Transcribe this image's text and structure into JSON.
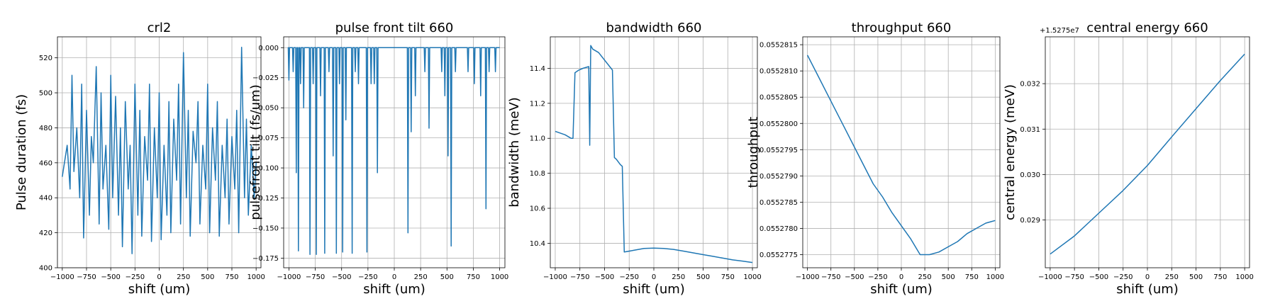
{
  "chart_data": [
    {
      "type": "line",
      "title": "crl2",
      "xlabel": "shift (um)",
      "ylabel": "Pulse duration (fs)",
      "xlim": [
        -1050,
        1050
      ],
      "ylim": [
        400,
        532
      ],
      "xticks": [
        -1000,
        -750,
        -500,
        -250,
        0,
        250,
        500,
        750,
        1000
      ],
      "xtick_labels": [
        "−1000",
        "−750",
        "−500",
        "−250",
        "0",
        "250",
        "500",
        "750",
        "1000"
      ],
      "yticks": [
        400,
        420,
        440,
        460,
        480,
        500,
        520
      ],
      "ytick_labels": [
        "400",
        "420",
        "440",
        "460",
        "480",
        "500",
        "520"
      ],
      "grid": true,
      "series": [
        {
          "x": [
            -1000,
            -950,
            -920,
            -900,
            -880,
            -850,
            -820,
            -800,
            -780,
            -750,
            -720,
            -700,
            -680,
            -650,
            -620,
            -600,
            -580,
            -550,
            -520,
            -500,
            -480,
            -450,
            -420,
            -400,
            -380,
            -350,
            -320,
            -300,
            -280,
            -250,
            -220,
            -200,
            -180,
            -150,
            -120,
            -100,
            -80,
            -50,
            -20,
            0,
            20,
            50,
            80,
            100,
            120,
            150,
            180,
            200,
            220,
            250,
            280,
            300,
            320,
            350,
            380,
            400,
            420,
            450,
            480,
            500,
            520,
            550,
            580,
            600,
            620,
            650,
            680,
            700,
            720,
            750,
            780,
            800,
            820,
            850,
            880,
            900,
            920,
            950,
            980,
            1000
          ],
          "y": [
            452,
            470,
            445,
            510,
            455,
            480,
            440,
            505,
            417,
            490,
            430,
            475,
            460,
            515,
            425,
            500,
            445,
            470,
            422,
            510,
            440,
            498,
            430,
            480,
            412,
            495,
            445,
            470,
            408,
            505,
            430,
            490,
            418,
            475,
            450,
            505,
            415,
            480,
            440,
            500,
            416,
            470,
            430,
            495,
            420,
            485,
            450,
            505,
            425,
            523,
            440,
            490,
            418,
            478,
            460,
            495,
            425,
            470,
            445,
            505,
            420,
            480,
            450,
            495,
            418,
            470,
            440,
            485,
            425,
            475,
            445,
            490,
            420,
            526,
            440,
            485,
            430,
            470,
            440,
            460
          ]
        }
      ]
    },
    {
      "type": "line",
      "title": "pulse front tilt 660",
      "xlabel": "shift (um)",
      "ylabel": "pulsefront tilt (fs/um)",
      "xlim": [
        -1050,
        1050
      ],
      "ylim": [
        -0.183,
        0.009
      ],
      "xticks": [
        -1000,
        -750,
        -500,
        -250,
        0,
        250,
        500,
        750,
        1000
      ],
      "xtick_labels": [
        "−1000",
        "−750",
        "−500",
        "−250",
        "0",
        "250",
        "500",
        "750",
        "1000"
      ],
      "yticks": [
        0,
        -0.025,
        -0.05,
        -0.075,
        -0.1,
        -0.125,
        -0.15,
        -0.175
      ],
      "ytick_labels": [
        "0.000",
        "−0.025",
        "−0.050",
        "−0.075",
        "−0.100",
        "−0.125",
        "−0.150",
        "−0.175"
      ],
      "grid": true,
      "spikes": [
        [
          -1000,
          -0.027
        ],
        [
          -960,
          -0.02
        ],
        [
          -930,
          -0.104
        ],
        [
          -910,
          -0.169
        ],
        [
          -890,
          -0.03
        ],
        [
          -860,
          -0.05
        ],
        [
          -800,
          -0.172
        ],
        [
          -770,
          -0.03
        ],
        [
          -740,
          -0.172
        ],
        [
          -700,
          -0.04
        ],
        [
          -660,
          -0.171
        ],
        [
          -620,
          -0.02
        ],
        [
          -580,
          -0.09
        ],
        [
          -550,
          -0.171
        ],
        [
          -520,
          -0.03
        ],
        [
          -490,
          -0.17
        ],
        [
          -460,
          -0.06
        ],
        [
          -400,
          -0.171
        ],
        [
          -370,
          -0.02
        ],
        [
          -340,
          -0.03
        ],
        [
          -260,
          -0.17
        ],
        [
          -220,
          -0.03
        ],
        [
          -190,
          -0.03
        ],
        [
          -160,
          -0.104
        ],
        [
          130,
          -0.154
        ],
        [
          160,
          -0.07
        ],
        [
          200,
          -0.04
        ],
        [
          290,
          -0.02
        ],
        [
          330,
          -0.067
        ],
        [
          450,
          -0.02
        ],
        [
          480,
          -0.04
        ],
        [
          510,
          -0.09
        ],
        [
          540,
          -0.165
        ],
        [
          580,
          -0.02
        ],
        [
          700,
          -0.02
        ],
        [
          760,
          -0.03
        ],
        [
          820,
          -0.04
        ],
        [
          870,
          -0.134
        ],
        [
          900,
          -0.02
        ],
        [
          960,
          -0.02
        ]
      ]
    },
    {
      "type": "line",
      "title": "bandwidth 660",
      "xlabel": "shift (um)",
      "ylabel": "bandwidth (meV)",
      "xlim": [
        -1050,
        1050
      ],
      "ylim": [
        10.26,
        11.58
      ],
      "xticks": [
        -1000,
        -750,
        -500,
        -250,
        0,
        250,
        500,
        750,
        1000
      ],
      "xtick_labels": [
        "−1000",
        "−750",
        "−500",
        "−250",
        "0",
        "250",
        "500",
        "750",
        "1000"
      ],
      "yticks": [
        10.4,
        10.6,
        10.8,
        11.0,
        11.2,
        11.4
      ],
      "ytick_labels": [
        "10.4",
        "10.6",
        "10.8",
        "11.0",
        "11.2",
        "11.4"
      ],
      "grid": true,
      "series": [
        {
          "x": [
            -1000,
            -900,
            -840,
            -820,
            -800,
            -760,
            -720,
            -660,
            -650,
            -640,
            -630,
            -620,
            -560,
            -420,
            -400,
            -380,
            -340,
            -320,
            -300,
            -200,
            -100,
            0,
            100,
            200,
            300,
            400,
            500,
            600,
            700,
            800,
            900,
            1000
          ],
          "y": [
            11.04,
            11.02,
            11.0,
            11.0,
            11.375,
            11.39,
            11.4,
            11.41,
            10.96,
            11.53,
            11.52,
            11.51,
            11.49,
            11.39,
            10.89,
            10.88,
            10.85,
            10.84,
            10.35,
            10.36,
            10.37,
            10.372,
            10.37,
            10.365,
            10.355,
            10.345,
            10.335,
            10.325,
            10.315,
            10.305,
            10.298,
            10.29
          ]
        }
      ]
    },
    {
      "type": "line",
      "title": "throughput 660",
      "xlabel": "shift (um)",
      "ylabel": "throughput",
      "xlim": [
        -1050,
        1050
      ],
      "ylim": [
        0.05527725,
        0.05528165
      ],
      "xticks": [
        -1000,
        -750,
        -500,
        -250,
        0,
        250,
        500,
        750,
        1000
      ],
      "xtick_labels": [
        "−1000",
        "−750",
        "−500",
        "−250",
        "0",
        "250",
        "500",
        "750",
        "1000"
      ],
      "yticks": [
        0.0552775,
        0.055278,
        0.0552785,
        0.055279,
        0.0552795,
        0.05528,
        0.0552805,
        0.055281,
        0.0552815
      ],
      "ytick_labels": [
        "0.0552775",
        "0.0552780",
        "0.0552785",
        "0.0552790",
        "0.0552795",
        "0.0552800",
        "0.0552805",
        "0.0552810",
        "0.0552815"
      ],
      "grid": true,
      "series": [
        {
          "x": [
            -1000,
            -900,
            -800,
            -700,
            -600,
            -500,
            -400,
            -300,
            -200,
            -100,
            0,
            100,
            200,
            300,
            400,
            500,
            600,
            700,
            800,
            900,
            1000
          ],
          "y": [
            0.0552813,
            0.05528095,
            0.0552806,
            0.05528025,
            0.0552799,
            0.05527955,
            0.0552792,
            0.05527885,
            0.0552786,
            0.0552783,
            0.05527805,
            0.0552778,
            0.0552775,
            0.0552775,
            0.05527755,
            0.05527765,
            0.05527775,
            0.0552779,
            0.055278,
            0.0552781,
            0.05527815
          ]
        }
      ]
    },
    {
      "type": "line",
      "title": "central energy 660",
      "xlabel": "shift (um)",
      "ylabel": "central energy (meV)",
      "offset_text": "+1.5275e7",
      "xlim": [
        -1050,
        1050
      ],
      "ylim": [
        0.02795,
        0.03303
      ],
      "xticks": [
        -1000,
        -750,
        -500,
        -250,
        0,
        250,
        500,
        750,
        1000
      ],
      "xtick_labels": [
        "−1000",
        "−750",
        "−500",
        "−250",
        "0",
        "250",
        "500",
        "750",
        "1000"
      ],
      "yticks": [
        0.029,
        0.03,
        0.031,
        0.032
      ],
      "ytick_labels": [
        "0.029",
        "0.030",
        "0.031",
        "0.032"
      ],
      "grid": true,
      "series": [
        {
          "x": [
            -1000,
            -750,
            -500,
            -250,
            0,
            250,
            500,
            750,
            1000
          ],
          "y": [
            0.02825,
            0.02865,
            0.02915,
            0.02965,
            0.0302,
            0.03083,
            0.03145,
            0.03207,
            0.03265
          ]
        }
      ]
    }
  ]
}
